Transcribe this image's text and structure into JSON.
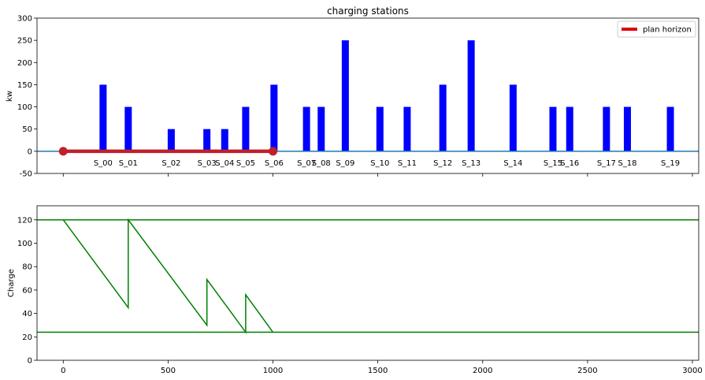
{
  "chart_data": [
    {
      "type": "bar",
      "title": "charging stations",
      "xlabel": "",
      "ylabel": "kw",
      "xlim": [
        -125,
        3030
      ],
      "ylim": [
        -50,
        300
      ],
      "yticks": [
        -50,
        0,
        50,
        100,
        150,
        200,
        250,
        300
      ],
      "xticks": [
        0,
        500,
        1000,
        1500,
        2000,
        2500,
        3000
      ],
      "show_xtick_labels": false,
      "grid": false,
      "legend": {
        "placement": "top-right",
        "entries": [
          {
            "label": "plan horizon",
            "color": "#e00000"
          }
        ]
      },
      "bar_color": "#0000ff",
      "stations": [
        {
          "name": "S_00",
          "x": 190,
          "power": 150
        },
        {
          "name": "S_01",
          "x": 310,
          "power": 100
        },
        {
          "name": "S_02",
          "x": 515,
          "power": 50
        },
        {
          "name": "S_03",
          "x": 685,
          "power": 50
        },
        {
          "name": "S_04",
          "x": 770,
          "power": 50
        },
        {
          "name": "S_05",
          "x": 870,
          "power": 100
        },
        {
          "name": "S_06",
          "x": 1005,
          "power": 150
        },
        {
          "name": "S_07",
          "x": 1160,
          "power": 100
        },
        {
          "name": "S_08",
          "x": 1230,
          "power": 100
        },
        {
          "name": "S_09",
          "x": 1345,
          "power": 250
        },
        {
          "name": "S_10",
          "x": 1510,
          "power": 100
        },
        {
          "name": "S_11",
          "x": 1640,
          "power": 100
        },
        {
          "name": "S_12",
          "x": 1810,
          "power": 150
        },
        {
          "name": "S_13",
          "x": 1945,
          "power": 250
        },
        {
          "name": "S_14",
          "x": 2145,
          "power": 150
        },
        {
          "name": "S_15",
          "x": 2335,
          "power": 100
        },
        {
          "name": "S_16",
          "x": 2415,
          "power": 100
        },
        {
          "name": "S_17",
          "x": 2590,
          "power": 100
        },
        {
          "name": "S_18",
          "x": 2690,
          "power": 100
        },
        {
          "name": "S_19",
          "x": 2895,
          "power": 100
        }
      ],
      "baseline": {
        "y": 0,
        "color": "#1f77b4"
      },
      "plan_horizon": {
        "x": [
          0,
          1000
        ],
        "y": [
          0,
          0
        ],
        "color": "#c0202a"
      }
    },
    {
      "type": "line",
      "title": "",
      "xlabel": "",
      "ylabel": "Charge",
      "xlim": [
        -125,
        3030
      ],
      "ylim": [
        0,
        132
      ],
      "yticks": [
        0,
        20,
        40,
        60,
        80,
        100,
        120
      ],
      "xticks": [
        0,
        500,
        1000,
        1500,
        2000,
        2500,
        3000
      ],
      "grid": false,
      "line_color": "#008000",
      "hlines": [
        120,
        24
      ],
      "series": [
        {
          "x": [
            0,
            310,
            310,
            685,
            685,
            870,
            870,
            1000
          ],
          "y": [
            120,
            45,
            120,
            30,
            69,
            24,
            56,
            24
          ]
        }
      ]
    }
  ]
}
